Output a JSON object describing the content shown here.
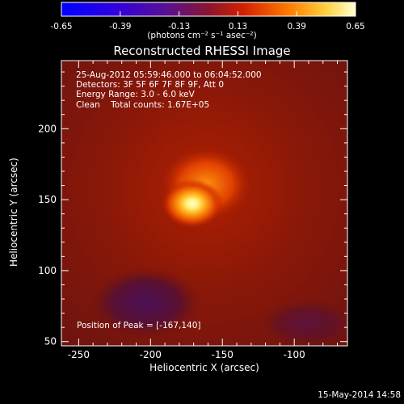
{
  "colorbar": {
    "tick_labels": [
      "-0.65",
      "-0.39",
      "-0.13",
      "0.13",
      "0.39",
      "0.65"
    ],
    "units_text": "(photons cm⁻² s⁻¹ asec⁻²)",
    "range": [
      -0.65,
      0.65
    ]
  },
  "plot": {
    "title": "Reconstructed RHESSI Image",
    "time_range": "25-Aug-2012 05:59:46.000 to 06:04:52.000",
    "detectors": "Detectors: 3F 5F 6F 7F 8F 9F, Att 0",
    "energy_range": "Energy Range: 3.0 - 6.0 keV",
    "algorithm_line": "Clean    Total counts: 1.67E+05",
    "peak_position": "Position of Peak = [-167,140]",
    "xlabel": "Heliocentric X (arcsec)",
    "ylabel": "Heliocentric Y (arcsec)",
    "x_ticks": [
      "-250",
      "-200",
      "-150",
      "-100"
    ],
    "y_ticks": [
      "50",
      "100",
      "150",
      "200"
    ],
    "xlim": [
      -262,
      -63
    ],
    "ylim": [
      47,
      248
    ],
    "peak": {
      "x": -167,
      "y": 140
    }
  },
  "footer": {
    "timestamp": "15-May-2014 14:58"
  }
}
